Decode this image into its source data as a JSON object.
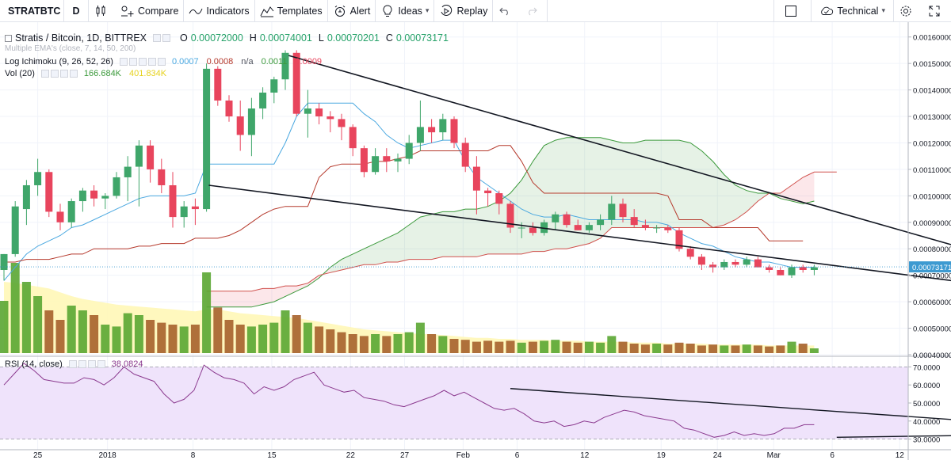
{
  "toolbar": {
    "symbol": "STRATBTC",
    "interval": "D",
    "compare": "Compare",
    "indicators": "Indicators",
    "templates": "Templates",
    "alert": "Alert",
    "ideas": "Ideas",
    "replay": "Replay",
    "technical": "Technical"
  },
  "legend": {
    "main_title": "Stratis / Bitcoin, 1D, BITTREX",
    "o_label": "O",
    "o_value": "0.00072000",
    "h_label": "H",
    "h_value": "0.00074001",
    "l_label": "L",
    "l_value": "0.00070201",
    "c_label": "C",
    "c_value": "0.00073171",
    "ema_title": "Multiple EMA's (close, 7, 14, 50, 200)",
    "ichimoku_title": "Log Ichimoku (9, 26, 52, 26)",
    "ichimoku_values": [
      "0.0007",
      "0.0008",
      "n/a",
      "0.0011",
      "0.0009"
    ],
    "vol_title": "Vol (20)",
    "vol_values": [
      "166.684K",
      "401.834K"
    ],
    "rsi_title": "RSI (14, close)",
    "rsi_value": "38.0824"
  },
  "colors": {
    "up": "#3fa66a",
    "down": "#e8455d",
    "tenkan": "#4aa8e0",
    "kijun": "#b5392c",
    "span_a": "#3c9a3c",
    "span_b": "#d0504c",
    "rsi_line": "#8b3a8f",
    "rsi_band": "#efe3fb",
    "vol_ma_fill": "#fff7b3",
    "last_price_tag": "#3d9ad1"
  },
  "chart_data": {
    "type": "candlestick",
    "price_axis": {
      "ticks": [
        "0.00160000",
        "0.00150000",
        "0.00140000",
        "0.00130000",
        "0.00120000",
        "0.00110000",
        "0.00100000",
        "0.00090000",
        "0.00080000",
        "0.00070000",
        "0.00060000",
        "0.00050000",
        "0.00040000"
      ],
      "last_price_label": "0.00073171",
      "ylim": [
        0.0004,
        0.00165
      ]
    },
    "rsi_axis": {
      "ticks": [
        "70.0000",
        "60.0000",
        "50.0000",
        "40.0000",
        "30.0000"
      ],
      "ylim": [
        25,
        75
      ],
      "upper_band": 70,
      "lower_band": 30
    },
    "time_axis": [
      "25",
      "2018",
      "8",
      "15",
      "22",
      "27",
      "Feb",
      "6",
      "12",
      "19",
      "24",
      "Mar",
      "6",
      "12"
    ],
    "candles": [
      {
        "o": 0.00072,
        "h": 0.00078,
        "l": 0.00068,
        "c": 0.00078
      },
      {
        "o": 0.00078,
        "h": 0.00098,
        "l": 0.00077,
        "c": 0.00096
      },
      {
        "o": 0.00095,
        "h": 0.00106,
        "l": 0.00089,
        "c": 0.00104
      },
      {
        "o": 0.00104,
        "h": 0.00114,
        "l": 0.001,
        "c": 0.00109
      },
      {
        "o": 0.00109,
        "h": 0.0011,
        "l": 0.00092,
        "c": 0.00094
      },
      {
        "o": 0.00094,
        "h": 0.00097,
        "l": 0.00087,
        "c": 0.0009
      },
      {
        "o": 0.0009,
        "h": 0.00099,
        "l": 0.00088,
        "c": 0.00098
      },
      {
        "o": 0.00098,
        "h": 0.00103,
        "l": 0.00094,
        "c": 0.00102
      },
      {
        "o": 0.00102,
        "h": 0.00104,
        "l": 0.00096,
        "c": 0.00099
      },
      {
        "o": 0.00099,
        "h": 0.00101,
        "l": 0.00095,
        "c": 0.001
      },
      {
        "o": 0.001,
        "h": 0.00109,
        "l": 0.00099,
        "c": 0.00107
      },
      {
        "o": 0.00107,
        "h": 0.00115,
        "l": 0.00098,
        "c": 0.00111
      },
      {
        "o": 0.00111,
        "h": 0.00121,
        "l": 0.00096,
        "c": 0.00119
      },
      {
        "o": 0.00119,
        "h": 0.00121,
        "l": 0.00105,
        "c": 0.0011
      },
      {
        "o": 0.0011,
        "h": 0.00114,
        "l": 0.00101,
        "c": 0.00104
      },
      {
        "o": 0.00104,
        "h": 0.00109,
        "l": 0.00088,
        "c": 0.00092
      },
      {
        "o": 0.00092,
        "h": 0.00098,
        "l": 0.00088,
        "c": 0.00096
      },
      {
        "o": 0.00096,
        "h": 0.00099,
        "l": 0.00089,
        "c": 0.00095
      },
      {
        "o": 0.00095,
        "h": 0.0015,
        "l": 0.00094,
        "c": 0.00148
      },
      {
        "o": 0.00148,
        "h": 0.00149,
        "l": 0.00134,
        "c": 0.00136
      },
      {
        "o": 0.00136,
        "h": 0.00138,
        "l": 0.00128,
        "c": 0.0013
      },
      {
        "o": 0.0013,
        "h": 0.00136,
        "l": 0.00117,
        "c": 0.00123
      },
      {
        "o": 0.00123,
        "h": 0.00137,
        "l": 0.00115,
        "c": 0.00133
      },
      {
        "o": 0.00133,
        "h": 0.00141,
        "l": 0.00129,
        "c": 0.00139
      },
      {
        "o": 0.00139,
        "h": 0.00145,
        "l": 0.00135,
        "c": 0.00144
      },
      {
        "o": 0.00144,
        "h": 0.00155,
        "l": 0.0014,
        "c": 0.00154
      },
      {
        "o": 0.00154,
        "h": 0.00155,
        "l": 0.0013,
        "c": 0.00131
      },
      {
        "o": 0.00131,
        "h": 0.0014,
        "l": 0.00122,
        "c": 0.00133
      },
      {
        "o": 0.00133,
        "h": 0.00135,
        "l": 0.00127,
        "c": 0.0013
      },
      {
        "o": 0.0013,
        "h": 0.00132,
        "l": 0.00124,
        "c": 0.00129
      },
      {
        "o": 0.00129,
        "h": 0.00131,
        "l": 0.00121,
        "c": 0.00126
      },
      {
        "o": 0.00126,
        "h": 0.00127,
        "l": 0.00115,
        "c": 0.00118
      },
      {
        "o": 0.00118,
        "h": 0.00119,
        "l": 0.00107,
        "c": 0.00109
      },
      {
        "o": 0.00109,
        "h": 0.00118,
        "l": 0.00108,
        "c": 0.00115
      },
      {
        "o": 0.00115,
        "h": 0.00118,
        "l": 0.00109,
        "c": 0.00113
      },
      {
        "o": 0.00113,
        "h": 0.00116,
        "l": 0.00109,
        "c": 0.00114
      },
      {
        "o": 0.00114,
        "h": 0.00123,
        "l": 0.00112,
        "c": 0.0012
      },
      {
        "o": 0.0012,
        "h": 0.00136,
        "l": 0.00117,
        "c": 0.00126
      },
      {
        "o": 0.00126,
        "h": 0.00129,
        "l": 0.0012,
        "c": 0.00124
      },
      {
        "o": 0.00124,
        "h": 0.00131,
        "l": 0.00121,
        "c": 0.00129
      },
      {
        "o": 0.00129,
        "h": 0.0013,
        "l": 0.00118,
        "c": 0.0012
      },
      {
        "o": 0.0012,
        "h": 0.00122,
        "l": 0.00109,
        "c": 0.00111
      },
      {
        "o": 0.00111,
        "h": 0.00115,
        "l": 0.00093,
        "c": 0.00102
      },
      {
        "o": 0.00102,
        "h": 0.00103,
        "l": 0.00096,
        "c": 0.00101
      },
      {
        "o": 0.00101,
        "h": 0.00102,
        "l": 0.00093,
        "c": 0.00097
      },
      {
        "o": 0.00097,
        "h": 0.00098,
        "l": 0.00086,
        "c": 0.00088
      },
      {
        "o": 0.00088,
        "h": 0.0009,
        "l": 0.00084,
        "c": 0.00088
      },
      {
        "o": 0.00088,
        "h": 0.0009,
        "l": 0.00085,
        "c": 0.00086
      },
      {
        "o": 0.00086,
        "h": 0.00091,
        "l": 0.00085,
        "c": 0.0009
      },
      {
        "o": 0.0009,
        "h": 0.00094,
        "l": 0.00087,
        "c": 0.00093
      },
      {
        "o": 0.00093,
        "h": 0.00094,
        "l": 0.00088,
        "c": 0.00089
      },
      {
        "o": 0.00089,
        "h": 0.00091,
        "l": 0.00087,
        "c": 0.00087
      },
      {
        "o": 0.00087,
        "h": 0.0009,
        "l": 0.00086,
        "c": 0.00089
      },
      {
        "o": 0.00089,
        "h": 0.00093,
        "l": 0.00087,
        "c": 0.00091
      },
      {
        "o": 0.00091,
        "h": 0.001,
        "l": 0.00089,
        "c": 0.00097
      },
      {
        "o": 0.00097,
        "h": 0.00099,
        "l": 0.0009,
        "c": 0.00092
      },
      {
        "o": 0.00092,
        "h": 0.00095,
        "l": 0.00088,
        "c": 0.00089
      },
      {
        "o": 0.00089,
        "h": 0.00091,
        "l": 0.00087,
        "c": 0.00088
      },
      {
        "o": 0.00088,
        "h": 0.00089,
        "l": 0.00086,
        "c": 0.00088
      },
      {
        "o": 0.00088,
        "h": 0.00089,
        "l": 0.00086,
        "c": 0.00087
      },
      {
        "o": 0.00087,
        "h": 0.00088,
        "l": 0.00079,
        "c": 0.0008
      },
      {
        "o": 0.0008,
        "h": 0.00081,
        "l": 0.00076,
        "c": 0.00077
      },
      {
        "o": 0.00077,
        "h": 0.00078,
        "l": 0.00072,
        "c": 0.00074
      },
      {
        "o": 0.00074,
        "h": 0.00075,
        "l": 0.00071,
        "c": 0.00073
      },
      {
        "o": 0.00073,
        "h": 0.00076,
        "l": 0.00072,
        "c": 0.00075
      },
      {
        "o": 0.00075,
        "h": 0.00076,
        "l": 0.00073,
        "c": 0.00074
      },
      {
        "o": 0.00074,
        "h": 0.00077,
        "l": 0.00073,
        "c": 0.00076
      },
      {
        "o": 0.00076,
        "h": 0.00077,
        "l": 0.00073,
        "c": 0.00073
      },
      {
        "o": 0.00073,
        "h": 0.00074,
        "l": 0.00071,
        "c": 0.00072
      },
      {
        "o": 0.00072,
        "h": 0.00073,
        "l": 0.0007,
        "c": 0.0007
      },
      {
        "o": 0.0007,
        "h": 0.00074,
        "l": 0.00069,
        "c": 0.00073
      },
      {
        "o": 0.00073,
        "h": 0.00074,
        "l": 0.00071,
        "c": 0.00072
      },
      {
        "o": 0.00072,
        "h": 0.00074,
        "l": 0.0007,
        "c": 0.00073
      }
    ],
    "volume": [
      0.55,
      0.95,
      0.75,
      0.6,
      0.45,
      0.35,
      0.5,
      0.45,
      0.4,
      0.3,
      0.28,
      0.42,
      0.4,
      0.35,
      0.32,
      0.3,
      0.28,
      0.3,
      0.85,
      0.48,
      0.35,
      0.3,
      0.28,
      0.3,
      0.32,
      0.45,
      0.4,
      0.32,
      0.28,
      0.25,
      0.22,
      0.2,
      0.18,
      0.2,
      0.18,
      0.2,
      0.22,
      0.32,
      0.2,
      0.18,
      0.15,
      0.14,
      0.12,
      0.13,
      0.12,
      0.13,
      0.11,
      0.12,
      0.13,
      0.14,
      0.12,
      0.11,
      0.12,
      0.11,
      0.18,
      0.12,
      0.1,
      0.09,
      0.1,
      0.09,
      0.11,
      0.1,
      0.08,
      0.09,
      0.08,
      0.08,
      0.09,
      0.08,
      0.07,
      0.08,
      0.12,
      0.1,
      0.05
    ],
    "volume_ma": [
      0.75,
      0.74,
      0.72,
      0.7,
      0.68,
      0.64,
      0.6,
      0.57,
      0.55,
      0.53,
      0.51,
      0.5,
      0.49,
      0.48,
      0.47,
      0.46,
      0.45,
      0.44,
      0.46,
      0.46,
      0.44,
      0.42,
      0.41,
      0.4,
      0.39,
      0.38,
      0.37,
      0.35,
      0.33,
      0.31,
      0.29,
      0.27,
      0.25,
      0.24,
      0.23,
      0.22,
      0.21,
      0.2,
      0.2,
      0.19,
      0.18,
      0.17,
      0.16,
      0.16,
      0.15,
      0.15,
      0.14,
      0.14,
      0.14,
      0.13,
      0.13,
      0.13,
      0.12,
      0.12,
      0.12,
      0.12,
      0.11,
      0.11,
      0.11,
      0.1,
      0.1,
      0.1,
      0.1,
      0.09,
      0.09,
      0.09,
      0.09,
      0.09,
      0.08,
      0.08,
      0.08,
      0.08,
      0.08
    ],
    "tenkan": [
      0.00068,
      0.00073,
      0.00078,
      0.00081,
      0.00083,
      0.00085,
      0.00088,
      0.00089,
      0.00091,
      0.00093,
      0.00095,
      0.00097,
      0.00099,
      0.001,
      0.001,
      0.001,
      0.001,
      0.00101,
      0.00112,
      0.00112,
      0.00112,
      0.00112,
      0.00112,
      0.00112,
      0.00112,
      0.0012,
      0.0013,
      0.00135,
      0.00135,
      0.00135,
      0.00135,
      0.00135,
      0.00131,
      0.00128,
      0.00123,
      0.0012,
      0.00118,
      0.00119,
      0.0012,
      0.00121,
      0.00121,
      0.00113,
      0.00107,
      0.00104,
      0.00101,
      0.00098,
      0.00095,
      0.00093,
      0.00092,
      0.00092,
      0.00093,
      0.00092,
      0.00091,
      0.00091,
      0.00091,
      0.00091,
      0.00091,
      0.0009,
      0.0009,
      0.00089,
      0.00086,
      0.00084,
      0.00082,
      0.00081,
      0.00079,
      0.00077,
      0.00076,
      0.00075,
      0.00075,
      0.00074,
      0.00073,
      0.00073,
      0.00073
    ],
    "kijun": [
      0.00075,
      0.00075,
      0.00076,
      0.00076,
      0.00076,
      0.00077,
      0.00078,
      0.00078,
      0.0008,
      0.0008,
      0.0008,
      0.0008,
      0.00081,
      0.00081,
      0.00082,
      0.00082,
      0.00082,
      0.00084,
      0.00084,
      0.00084,
      0.00085,
      0.00087,
      0.0009,
      0.00093,
      0.00095,
      0.00096,
      0.00096,
      0.00096,
      0.00107,
      0.00111,
      0.00112,
      0.00112,
      0.00112,
      0.00113,
      0.00113,
      0.00114,
      0.00115,
      0.00117,
      0.00117,
      0.00117,
      0.00117,
      0.00117,
      0.00117,
      0.00117,
      0.00119,
      0.00119,
      0.00113,
      0.00105,
      0.00101,
      0.00101,
      0.00101,
      0.00101,
      0.00101,
      0.00101,
      0.00101,
      0.00101,
      0.00101,
      0.00101,
      0.00101,
      0.001,
      0.00091,
      0.00091,
      0.00091,
      0.00088,
      0.00088,
      0.00088,
      0.00088,
      0.00088,
      0.00083,
      0.00083,
      0.00083,
      0.00083
    ],
    "span_a": [
      0.00058,
      0.00058,
      0.00058,
      0.00058,
      0.00058,
      0.00059,
      0.0006,
      0.00062,
      0.00064,
      0.00066,
      0.00069,
      0.00073,
      0.00076,
      0.00078,
      0.0008,
      0.00082,
      0.00084,
      0.00086,
      0.00089,
      0.00092,
      0.00093,
      0.00094,
      0.00094,
      0.00095,
      0.00095,
      0.00096,
      0.00098,
      0.00101,
      0.00106,
      0.00113,
      0.00119,
      0.00121,
      0.00122,
      0.00122,
      0.00122,
      0.00122,
      0.00121,
      0.0012,
      0.0012,
      0.00121,
      0.00121,
      0.00121,
      0.00121,
      0.0012,
      0.00117,
      0.00113,
      0.00108,
      0.00104,
      0.00102,
      0.00101,
      0.00101,
      0.00099,
      0.00098,
      0.00097,
      0.00098
    ],
    "span_b": [
      0.00064,
      0.00064,
      0.00064,
      0.00064,
      0.00064,
      0.00065,
      0.00065,
      0.00066,
      0.00066,
      0.00067,
      0.0007,
      0.00071,
      0.00072,
      0.00073,
      0.00074,
      0.00074,
      0.00075,
      0.00075,
      0.00076,
      0.00076,
      0.00076,
      0.00077,
      0.00077,
      0.00077,
      0.00077,
      0.00078,
      0.00078,
      0.00078,
      0.00078,
      0.00079,
      0.00079,
      0.0008,
      0.0008,
      0.00081,
      0.00082,
      0.00084,
      0.00088,
      0.00088,
      0.00088,
      0.00088,
      0.00088,
      0.00088,
      0.00088,
      0.00088,
      0.00088,
      0.00088,
      0.00089,
      0.00091,
      0.00094,
      0.00098,
      0.00101,
      0.00101,
      0.00104,
      0.00107,
      0.00109,
      0.00109,
      0.00109
    ],
    "rsi": [
      60,
      66,
      72,
      68,
      63,
      62,
      61,
      61,
      64,
      63,
      60,
      64,
      70,
      66,
      64,
      62,
      55,
      50,
      52,
      57,
      71,
      67,
      64,
      63,
      61,
      55,
      59,
      57,
      59,
      63,
      65,
      67,
      60,
      58,
      56,
      57,
      53,
      52,
      51,
      49,
      48,
      50,
      52,
      54,
      57,
      54,
      56,
      53,
      50,
      47,
      46,
      47,
      44,
      40,
      39,
      40,
      37,
      38,
      40,
      39,
      42,
      44,
      46,
      45,
      43,
      42,
      41,
      40,
      36,
      35,
      33,
      31,
      32,
      34,
      32,
      33,
      32,
      33,
      36,
      36,
      38,
      38
    ],
    "trendlines_price": [
      {
        "x1": 25.3,
        "y1": 0.00153,
        "x2": 97,
        "y2": 0.00066
      },
      {
        "x1": 18.2,
        "y1": 0.00104,
        "x2": 97,
        "y2": 0.00061
      }
    ],
    "trendlines_rsi": [
      {
        "x1": 45,
        "y1": 58,
        "x2": 93,
        "y2": 37
      },
      {
        "x1": 74,
        "y1": 31,
        "x2": 97,
        "y2": 33
      }
    ]
  }
}
